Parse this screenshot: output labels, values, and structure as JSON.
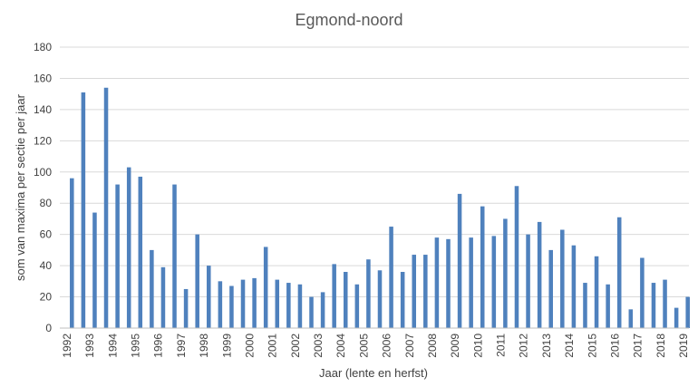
{
  "chart_data": {
    "type": "bar",
    "title": "Egmond-noord",
    "xlabel": "Jaar (lente en herfst)",
    "ylabel": "som van maxima per sectie per jaar",
    "ylim": [
      0,
      180
    ],
    "yticks": [
      0,
      20,
      40,
      60,
      80,
      100,
      120,
      140,
      160,
      180
    ],
    "grid": true,
    "bar_color": "#4F81BD",
    "year_labels": [
      "1992",
      "1993",
      "1994",
      "1995",
      "1996",
      "1997",
      "1998",
      "1999",
      "2000",
      "2001",
      "2002",
      "2003",
      "2004",
      "2005",
      "2006",
      "2007",
      "2008",
      "2009",
      "2010",
      "2011",
      "2012",
      "2013",
      "2014",
      "2015",
      "2016",
      "2017",
      "2018",
      "2019"
    ],
    "values": [
      96,
      151,
      74,
      154,
      92,
      103,
      97,
      50,
      39,
      92,
      25,
      60,
      40,
      30,
      27,
      31,
      32,
      52,
      31,
      29,
      28,
      20,
      23,
      41,
      36,
      28,
      44,
      37,
      65,
      36,
      47,
      47,
      58,
      57,
      86,
      58,
      78,
      59,
      70,
      91,
      60,
      68,
      50,
      63,
      53,
      29,
      46,
      28,
      71,
      12,
      45,
      29,
      31,
      13,
      20
    ]
  }
}
